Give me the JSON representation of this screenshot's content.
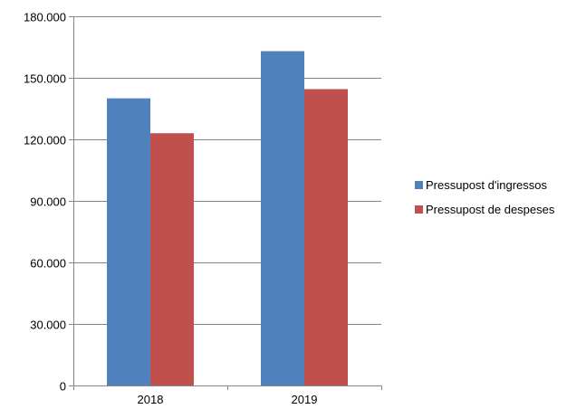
{
  "chart_data": {
    "type": "bar",
    "categories": [
      "2018",
      "2019"
    ],
    "series": [
      {
        "name": "Pressupost d'ingressos",
        "color": "#4F81BD",
        "values": [
          140000,
          163000
        ]
      },
      {
        "name": "Pressupost de despeses",
        "color": "#C0504D",
        "values": [
          123000,
          144500
        ]
      }
    ],
    "ylim": [
      0,
      180000
    ],
    "yticks": [
      0,
      30000,
      60000,
      90000,
      120000,
      150000,
      180000
    ],
    "ytick_labels": [
      "0",
      "30.000",
      "60.000",
      "90.000",
      "120.000",
      "150.000",
      "180.000"
    ],
    "grid": true,
    "legend_position": "right",
    "title": "",
    "xlabel": "",
    "ylabel": ""
  }
}
